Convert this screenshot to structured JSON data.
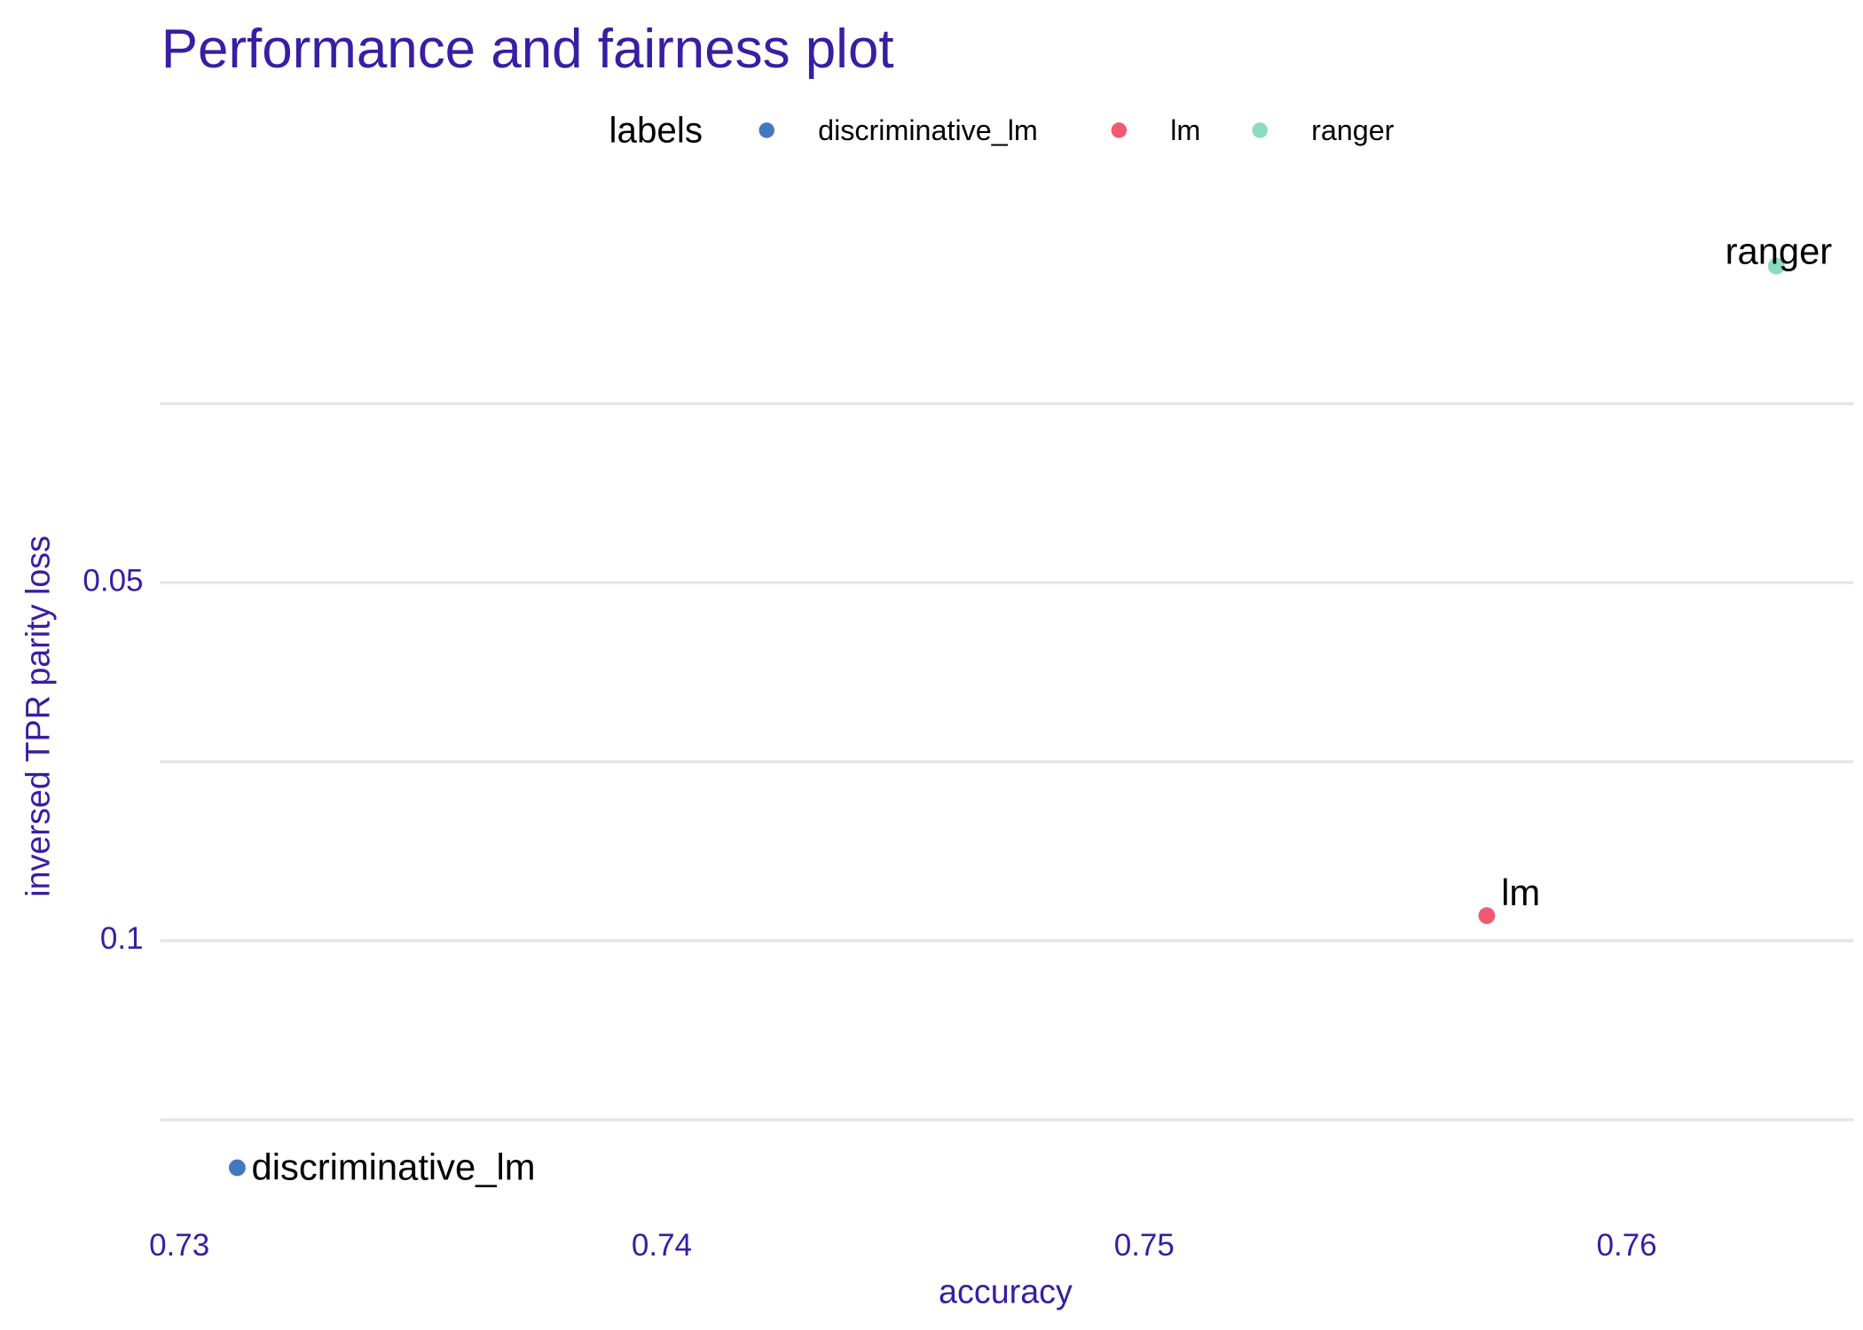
{
  "chart_data": {
    "type": "scatter",
    "title": "Performance and fairness plot",
    "x_label": "accuracy",
    "y_label": "inversed TPR parity loss",
    "legend_title": "labels",
    "legend_position": "top",
    "series": [
      {
        "name": "discriminative_lm",
        "color": "#4378bf",
        "x": [
          0.7312
        ],
        "values": [
          0.1317
        ]
      },
      {
        "name": "lm",
        "color": "#f05a71",
        "x": [
          0.7571
        ],
        "values": [
          0.0965
        ]
      },
      {
        "name": "ranger",
        "color": "#8bdcbe",
        "x": [
          0.7631
        ],
        "values": [
          0.0058
        ]
      }
    ],
    "xlim": [
      0.7296,
      0.7647
    ],
    "xticks": [
      0.73,
      0.74,
      0.75,
      0.76
    ],
    "ylim": [
      -0.0005,
      0.138
    ],
    "yticks": [
      0.05,
      0.1
    ],
    "y_reversed": true,
    "y_minor_ticks": [
      0.025,
      0.075,
      0.125
    ],
    "grid": true
  }
}
